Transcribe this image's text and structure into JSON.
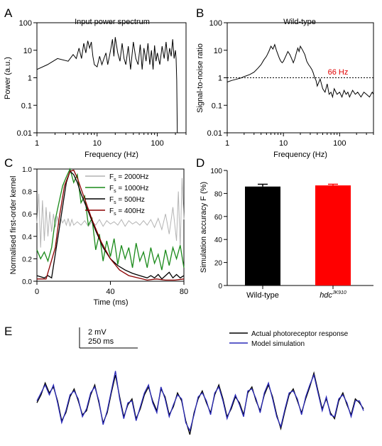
{
  "chart_data": [
    {
      "panel": "A",
      "type": "line",
      "title": "Input power spectrum",
      "xlabel": "Frequency (Hz)",
      "ylabel": "Power (a.u.)",
      "xscale": "log",
      "yscale": "log",
      "xlim": [
        1,
        300
      ],
      "ylim": [
        0.01,
        100
      ],
      "xticks": [
        1,
        10,
        100
      ],
      "xtick_labels": [
        "1",
        "10",
        "100"
      ],
      "yticks": [
        0.01,
        0.1,
        1,
        10,
        100
      ],
      "ytick_labels": [
        "0.01",
        "0.1",
        "1",
        "10",
        "100"
      ],
      "color": "#000000",
      "series": [
        {
          "x": [
            1.0,
            1.5,
            2.2,
            3.3,
            4.0,
            4.5,
            5.0,
            5.5,
            6.0,
            6.5,
            7.0,
            7.5,
            8.0,
            8.5,
            9.0,
            10,
            11,
            12,
            13,
            14,
            15,
            16,
            17,
            18,
            19,
            20,
            22,
            24,
            26,
            28,
            30,
            33,
            36,
            40,
            44,
            48,
            52,
            56,
            60,
            65,
            70,
            75,
            80,
            85,
            90,
            95,
            100,
            110,
            120,
            130,
            140,
            150,
            160,
            170,
            180,
            190,
            200,
            205,
            210,
            215
          ],
          "y": [
            2.0,
            3.0,
            5.0,
            4.0,
            7.0,
            5.0,
            12.0,
            5.0,
            18.0,
            8.0,
            22.0,
            12.0,
            20.0,
            6.0,
            3.0,
            2.5,
            6.0,
            3.0,
            5.0,
            8.0,
            3.0,
            6.0,
            12.0,
            25.0,
            6.0,
            30.0,
            8.0,
            4.0,
            18.0,
            5.0,
            3.0,
            14.0,
            2.0,
            20.0,
            5.0,
            3.0,
            16.0,
            2.0,
            12.0,
            4.0,
            18.0,
            3.0,
            10.0,
            2.0,
            15.0,
            4.0,
            8.0,
            3.0,
            14.0,
            5.0,
            20.0,
            4.0,
            12.0,
            6.0,
            25.0,
            5.0,
            10.0,
            5.0,
            0.8,
            0.01
          ]
        }
      ]
    },
    {
      "panel": "B",
      "type": "line",
      "title": "Wild-type",
      "xlabel": "Frequency (Hz)",
      "ylabel": "Signal-to-noise ratio",
      "xscale": "log",
      "yscale": "log",
      "xlim": [
        1,
        400
      ],
      "ylim": [
        0.01,
        100
      ],
      "xticks": [
        1,
        10,
        100
      ],
      "xtick_labels": [
        "1",
        "10",
        "100"
      ],
      "yticks": [
        0.01,
        0.1,
        1,
        10,
        100
      ],
      "ytick_labels": [
        "0.01",
        "0.1",
        "1",
        "10",
        "100"
      ],
      "reference_line": {
        "y": 1,
        "style": "dotted"
      },
      "annotation": {
        "text": "66 Hz",
        "x": 66,
        "y": 1,
        "color": "#e00000"
      },
      "color": "#000000",
      "series": [
        {
          "x": [
            1.0,
            1.2,
            1.5,
            1.8,
            2.0,
            2.5,
            3.0,
            3.5,
            4.0,
            4.5,
            5.0,
            5.5,
            6.0,
            6.5,
            7.0,
            7.5,
            8.0,
            8.5,
            9.0,
            9.5,
            10,
            11,
            12,
            13,
            14,
            15,
            16,
            17,
            18,
            19,
            20,
            22,
            24,
            26,
            28,
            30,
            32,
            34,
            36,
            38,
            40,
            45,
            50,
            55,
            60,
            65,
            70,
            75,
            80,
            90,
            100,
            110,
            120,
            130,
            140,
            150,
            170,
            190,
            210,
            240,
            270,
            300,
            340,
            380,
            400
          ],
          "y": [
            0.7,
            0.8,
            0.9,
            1.0,
            1.1,
            1.3,
            1.6,
            2.2,
            3.0,
            4.5,
            6.0,
            9.0,
            14.0,
            11.0,
            16.0,
            10.0,
            7.0,
            5.0,
            4.0,
            3.5,
            4.0,
            6.0,
            9.0,
            7.0,
            5.0,
            3.5,
            5.0,
            8.0,
            12.0,
            9.0,
            14.0,
            10.0,
            7.0,
            4.0,
            3.0,
            2.5,
            2.0,
            1.5,
            1.0,
            0.8,
            0.5,
            0.9,
            0.4,
            0.3,
            0.6,
            0.25,
            0.3,
            0.2,
            0.4,
            0.25,
            0.3,
            0.2,
            0.35,
            0.25,
            0.3,
            0.2,
            0.35,
            0.25,
            0.3,
            0.2,
            0.3,
            0.25,
            0.2,
            0.3,
            0.25
          ]
        }
      ]
    },
    {
      "panel": "C",
      "type": "line",
      "xlabel": "Time (ms)",
      "ylabel": "Normalised first-order kernel",
      "xlim": [
        0,
        80
      ],
      "ylim": [
        0,
        1.0
      ],
      "xticks": [
        0,
        40,
        80
      ],
      "xtick_labels": [
        "0",
        "40",
        "80"
      ],
      "yticks": [
        0,
        0.2,
        0.4,
        0.6,
        0.8,
        1.0
      ],
      "ytick_labels": [
        "0.0",
        "0.2",
        "0.4",
        "0.6",
        "0.8",
        "1.0"
      ],
      "legend": "top-right",
      "series": [
        {
          "name_prefix": "F",
          "name_sub": "s",
          "name_suffix": " = 2000Hz",
          "color": "#b4b4b4",
          "x": [
            0,
            1,
            2,
            3,
            4,
            5,
            6,
            7,
            8,
            9,
            10,
            11,
            12,
            13,
            14,
            15,
            16,
            17,
            18,
            19,
            20,
            22,
            24,
            26,
            28,
            30,
            32,
            34,
            36,
            38,
            40,
            42,
            44,
            46,
            48,
            50,
            52,
            54,
            56,
            58,
            60,
            62,
            64,
            66,
            68,
            70,
            72,
            74,
            76,
            77,
            78,
            79,
            80
          ],
          "y": [
            0.52,
            0.78,
            0.3,
            0.72,
            0.36,
            0.66,
            0.4,
            0.62,
            0.44,
            0.6,
            0.48,
            0.58,
            0.5,
            0.56,
            0.52,
            0.55,
            0.5,
            0.56,
            0.49,
            0.55,
            0.5,
            0.53,
            0.5,
            0.54,
            0.49,
            0.53,
            0.5,
            0.55,
            0.49,
            0.54,
            0.51,
            0.53,
            0.5,
            0.55,
            0.49,
            0.54,
            0.51,
            0.53,
            0.5,
            0.54,
            0.5,
            0.55,
            0.48,
            0.56,
            0.46,
            0.6,
            0.42,
            0.66,
            0.36,
            0.8,
            0.3,
            0.92,
            0.55
          ]
        },
        {
          "name_prefix": "F",
          "name_sub": "s",
          "name_suffix": " = 1000Hz",
          "color": "#1a8a1a",
          "x": [
            0,
            2,
            4,
            6,
            8,
            10,
            12,
            14,
            16,
            18,
            20,
            22,
            24,
            26,
            28,
            30,
            32,
            34,
            36,
            38,
            40,
            42,
            44,
            46,
            48,
            50,
            52,
            54,
            56,
            58,
            60,
            62,
            64,
            66,
            68,
            70,
            72,
            74,
            76,
            78,
            80
          ],
          "y": [
            0.28,
            0.2,
            0.26,
            0.18,
            0.3,
            0.55,
            0.7,
            0.85,
            0.93,
            1.0,
            0.88,
            0.95,
            0.7,
            0.76,
            0.5,
            0.56,
            0.28,
            0.42,
            0.18,
            0.36,
            0.22,
            0.38,
            0.15,
            0.32,
            0.2,
            0.3,
            0.12,
            0.34,
            0.18,
            0.26,
            0.12,
            0.3,
            0.16,
            0.24,
            0.1,
            0.28,
            0.14,
            0.3,
            0.2,
            0.32,
            0.12
          ]
        },
        {
          "name_prefix": "F",
          "name_sub": "s",
          "name_suffix": " = 500Hz",
          "color": "#000000",
          "x": [
            0,
            4,
            6,
            8,
            12,
            16,
            18,
            20,
            22,
            24,
            28,
            32,
            36,
            40,
            44,
            48,
            52,
            56,
            60,
            62,
            64,
            66,
            68,
            70,
            72,
            74,
            76,
            78,
            80
          ],
          "y": [
            0.05,
            0.03,
            0.05,
            0.03,
            0.45,
            0.88,
            0.98,
            0.95,
            0.88,
            0.78,
            0.62,
            0.45,
            0.3,
            0.2,
            0.14,
            0.1,
            0.07,
            0.05,
            0.03,
            0.05,
            0.03,
            0.06,
            0.02,
            0.05,
            0.08,
            0.03,
            0.06,
            0.03,
            0.05
          ]
        },
        {
          "name_prefix": "F",
          "name_sub": "s",
          "name_suffix": " = 400Hz",
          "color": "#8b0000",
          "x": [
            0,
            5,
            10,
            12,
            15,
            18,
            20,
            22,
            25,
            30,
            35,
            40,
            45,
            50,
            55,
            60,
            65,
            70,
            75,
            80
          ],
          "y": [
            0.02,
            0.02,
            0.3,
            0.55,
            0.85,
            0.98,
            0.99,
            0.92,
            0.78,
            0.55,
            0.35,
            0.2,
            0.1,
            0.05,
            0.03,
            0.01,
            0.02,
            0.01,
            0.01,
            0.02
          ]
        }
      ]
    },
    {
      "panel": "D",
      "type": "bar",
      "ylabel": "Simulation accuracy F (%)",
      "ylim": [
        0,
        100
      ],
      "yticks": [
        0,
        20,
        40,
        60,
        80,
        100
      ],
      "categories": [
        "Wild-type",
        "hdc"
      ],
      "category_superscripts": [
        "",
        "JK910"
      ],
      "category_italic": [
        false,
        true
      ],
      "values": [
        86,
        87
      ],
      "errors": [
        2,
        1
      ],
      "colors": [
        "#000000",
        "#ff0000"
      ]
    },
    {
      "panel": "E",
      "type": "line",
      "scale_bar_v": "2 mV",
      "scale_bar_h": "250 ms",
      "legend": "top-right",
      "series": [
        {
          "name": "Actual photoreceptor response",
          "color": "#000000",
          "y": [
            0.1,
            0.5,
            1.1,
            0.6,
            0.9,
            0.2,
            -0.8,
            -0.4,
            0.4,
            0.8,
            0.2,
            -0.5,
            -0.3,
            0.5,
            1.0,
            0.1,
            -0.9,
            -0.4,
            0.6,
            1.5,
            0.4,
            -0.6,
            0.0,
            0.3,
            -0.7,
            -0.2,
            0.5,
            0.9,
            0.2,
            -0.3,
            0.8,
            0.4,
            -0.5,
            -0.1,
            0.6,
            0.2,
            -0.8,
            -1.5,
            -0.4,
            0.3,
            0.7,
            0.1,
            -0.4,
            0.5,
            1.0,
            0.3,
            -0.6,
            -0.2,
            0.4,
            0.1,
            -0.5,
            0.6,
            0.9,
            0.2,
            -0.3,
            0.5,
            1.0,
            0.4,
            -0.5,
            -1.2,
            -0.3,
            0.5,
            0.8,
            0.2,
            -0.4,
            0.3,
            0.9,
            1.6,
            0.7,
            -0.2,
            0.3,
            -0.4,
            -0.7,
            0.2,
            0.6,
            0.0,
            -0.5,
            0.3,
            0.1,
            -0.2
          ]
        },
        {
          "name": "Model simulation",
          "color": "#2a2ab8",
          "y": [
            0.2,
            0.6,
            1.0,
            0.5,
            1.0,
            0.1,
            -0.9,
            -0.3,
            0.5,
            0.7,
            0.3,
            -0.6,
            -0.2,
            0.6,
            0.9,
            0.2,
            -1.0,
            -0.3,
            0.7,
            1.7,
            0.3,
            -0.7,
            0.1,
            0.2,
            -0.8,
            -0.1,
            0.6,
            1.0,
            0.1,
            -0.4,
            0.9,
            0.3,
            -0.6,
            0.0,
            0.5,
            0.3,
            -0.9,
            -1.3,
            -0.5,
            0.4,
            0.6,
            0.2,
            -0.5,
            0.6,
            0.9,
            0.2,
            -0.7,
            -0.1,
            0.5,
            0.0,
            -0.6,
            0.7,
            0.8,
            0.3,
            -0.4,
            0.6,
            1.1,
            0.3,
            -0.6,
            -1.1,
            -0.2,
            0.6,
            0.7,
            0.3,
            -0.5,
            0.4,
            1.0,
            1.5,
            0.6,
            -0.3,
            0.4,
            -0.5,
            -0.6,
            0.3,
            0.5,
            0.1,
            -0.6,
            0.2,
            0.2,
            -0.3
          ]
        }
      ]
    }
  ]
}
